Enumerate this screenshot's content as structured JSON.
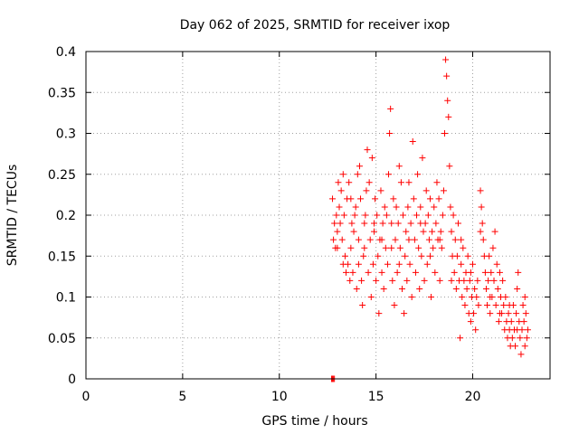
{
  "chart_data": {
    "type": "scatter",
    "title": "Day 062 of 2025, SRMTID for receiver ixop",
    "xlabel": "GPS time / hours",
    "ylabel": "SRMTID / TECUs",
    "xlim": [
      0,
      24
    ],
    "ylim": [
      0,
      0.4
    ],
    "xticks": [
      0,
      5,
      10,
      15,
      20
    ],
    "xtick_labels": [
      "0",
      "5",
      "10",
      "15",
      "20"
    ],
    "yticks": [
      0,
      0.05,
      0.1,
      0.15,
      0.2,
      0.25,
      0.3,
      0.35,
      0.4
    ],
    "ytick_labels": [
      "0",
      "0.05",
      "0.1",
      "0.15",
      "0.2",
      "0.25",
      "0.3",
      "0.35",
      "0.4"
    ],
    "grid": true,
    "marker": "plus",
    "color": "#ff0000",
    "series": [
      {
        "name": "SRMTID",
        "points": [
          [
            12.7,
            0.0
          ],
          [
            12.75,
            0.0
          ],
          [
            12.8,
            0.0
          ],
          [
            12.85,
            0.0
          ],
          [
            12.75,
            0.22
          ],
          [
            12.8,
            0.17
          ],
          [
            12.85,
            0.19
          ],
          [
            12.9,
            0.16
          ],
          [
            12.95,
            0.2
          ],
          [
            13.0,
            0.18
          ],
          [
            13.05,
            0.24
          ],
          [
            13.1,
            0.21
          ],
          [
            13.15,
            0.19
          ],
          [
            13.2,
            0.23
          ],
          [
            13.25,
            0.17
          ],
          [
            13.3,
            0.25
          ],
          [
            13.35,
            0.2
          ],
          [
            13.4,
            0.15
          ],
          [
            13.45,
            0.13
          ],
          [
            13.5,
            0.22
          ],
          [
            13.55,
            0.14
          ],
          [
            13.6,
            0.24
          ],
          [
            13.65,
            0.12
          ],
          [
            13.7,
            0.16
          ],
          [
            13.75,
            0.19
          ],
          [
            13.8,
            0.13
          ],
          [
            13.85,
            0.18
          ],
          [
            13.9,
            0.2
          ],
          [
            13.95,
            0.21
          ],
          [
            14.0,
            0.11
          ],
          [
            14.05,
            0.25
          ],
          [
            14.1,
            0.17
          ],
          [
            14.15,
            0.26
          ],
          [
            14.2,
            0.22
          ],
          [
            14.25,
            0.12
          ],
          [
            14.3,
            0.09
          ],
          [
            14.35,
            0.15
          ],
          [
            14.4,
            0.19
          ],
          [
            14.45,
            0.2
          ],
          [
            14.5,
            0.23
          ],
          [
            14.55,
            0.28
          ],
          [
            14.6,
            0.13
          ],
          [
            14.65,
            0.24
          ],
          [
            14.7,
            0.17
          ],
          [
            14.75,
            0.1
          ],
          [
            14.8,
            0.27
          ],
          [
            14.85,
            0.14
          ],
          [
            14.9,
            0.18
          ],
          [
            14.95,
            0.22
          ],
          [
            15.0,
            0.12
          ],
          [
            15.05,
            0.2
          ],
          [
            15.1,
            0.15
          ],
          [
            15.15,
            0.08
          ],
          [
            15.2,
            0.17
          ],
          [
            15.25,
            0.23
          ],
          [
            15.3,
            0.13
          ],
          [
            15.35,
            0.19
          ],
          [
            15.4,
            0.11
          ],
          [
            15.45,
            0.21
          ],
          [
            15.5,
            0.16
          ],
          [
            15.55,
            0.2
          ],
          [
            15.6,
            0.14
          ],
          [
            15.65,
            0.25
          ],
          [
            15.7,
            0.3
          ],
          [
            15.75,
            0.33
          ],
          [
            15.8,
            0.19
          ],
          [
            15.85,
            0.12
          ],
          [
            15.9,
            0.22
          ],
          [
            15.95,
            0.09
          ],
          [
            16.0,
            0.17
          ],
          [
            16.05,
            0.21
          ],
          [
            16.1,
            0.13
          ],
          [
            16.15,
            0.19
          ],
          [
            16.2,
            0.26
          ],
          [
            16.25,
            0.16
          ],
          [
            16.3,
            0.24
          ],
          [
            16.35,
            0.11
          ],
          [
            16.4,
            0.2
          ],
          [
            16.45,
            0.08
          ],
          [
            16.5,
            0.15
          ],
          [
            16.55,
            0.18
          ],
          [
            16.6,
            0.12
          ],
          [
            16.65,
            0.21
          ],
          [
            16.7,
            0.24
          ],
          [
            16.75,
            0.14
          ],
          [
            16.8,
            0.19
          ],
          [
            16.85,
            0.1
          ],
          [
            16.9,
            0.29
          ],
          [
            16.95,
            0.22
          ],
          [
            17.0,
            0.17
          ],
          [
            17.05,
            0.13
          ],
          [
            17.1,
            0.2
          ],
          [
            17.15,
            0.25
          ],
          [
            17.2,
            0.16
          ],
          [
            17.25,
            0.11
          ],
          [
            17.3,
            0.21
          ],
          [
            17.35,
            0.15
          ],
          [
            17.4,
            0.27
          ],
          [
            17.45,
            0.18
          ],
          [
            17.5,
            0.12
          ],
          [
            17.55,
            0.19
          ],
          [
            17.6,
            0.23
          ],
          [
            17.65,
            0.14
          ],
          [
            17.7,
            0.2
          ],
          [
            17.75,
            0.17
          ],
          [
            17.8,
            0.22
          ],
          [
            17.85,
            0.1
          ],
          [
            17.9,
            0.18
          ],
          [
            17.95,
            0.16
          ],
          [
            18.0,
            0.21
          ],
          [
            18.05,
            0.13
          ],
          [
            18.1,
            0.19
          ],
          [
            18.15,
            0.24
          ],
          [
            18.2,
            0.17
          ],
          [
            18.25,
            0.22
          ],
          [
            18.3,
            0.12
          ],
          [
            18.35,
            0.18
          ],
          [
            18.4,
            0.16
          ],
          [
            18.45,
            0.2
          ],
          [
            18.5,
            0.23
          ],
          [
            18.6,
            0.39
          ],
          [
            18.65,
            0.37
          ],
          [
            18.7,
            0.34
          ],
          [
            18.75,
            0.32
          ],
          [
            18.55,
            0.3
          ],
          [
            18.8,
            0.26
          ],
          [
            18.85,
            0.21
          ],
          [
            18.9,
            0.18
          ],
          [
            18.95,
            0.15
          ],
          [
            19.0,
            0.2
          ],
          [
            19.05,
            0.13
          ],
          [
            19.1,
            0.17
          ],
          [
            19.15,
            0.11
          ],
          [
            19.2,
            0.15
          ],
          [
            19.25,
            0.19
          ],
          [
            19.3,
            0.12
          ],
          [
            19.35,
            0.05
          ],
          [
            19.4,
            0.14
          ],
          [
            19.45,
            0.1
          ],
          [
            19.5,
            0.16
          ],
          [
            19.55,
            0.12
          ],
          [
            19.6,
            0.09
          ],
          [
            19.65,
            0.13
          ],
          [
            19.7,
            0.11
          ],
          [
            19.75,
            0.15
          ],
          [
            19.8,
            0.08
          ],
          [
            19.85,
            0.12
          ],
          [
            19.9,
            0.07
          ],
          [
            19.95,
            0.1
          ],
          [
            20.0,
            0.14
          ],
          [
            20.05,
            0.08
          ],
          [
            20.1,
            0.11
          ],
          [
            20.15,
            0.06
          ],
          [
            20.2,
            0.1
          ],
          [
            20.25,
            0.12
          ],
          [
            20.3,
            0.09
          ],
          [
            20.4,
            0.23
          ],
          [
            20.45,
            0.21
          ],
          [
            20.5,
            0.19
          ],
          [
            20.55,
            0.17
          ],
          [
            20.6,
            0.15
          ],
          [
            20.65,
            0.13
          ],
          [
            20.7,
            0.11
          ],
          [
            20.75,
            0.09
          ],
          [
            20.8,
            0.12
          ],
          [
            20.85,
            0.15
          ],
          [
            20.9,
            0.08
          ],
          [
            20.95,
            0.13
          ],
          [
            21.0,
            0.1
          ],
          [
            21.05,
            0.16
          ],
          [
            21.1,
            0.12
          ],
          [
            21.15,
            0.18
          ],
          [
            21.2,
            0.09
          ],
          [
            21.25,
            0.14
          ],
          [
            21.3,
            0.11
          ],
          [
            21.35,
            0.07
          ],
          [
            21.4,
            0.13
          ],
          [
            21.45,
            0.1
          ],
          [
            21.5,
            0.08
          ],
          [
            21.55,
            0.12
          ],
          [
            21.6,
            0.09
          ],
          [
            21.65,
            0.06
          ],
          [
            21.7,
            0.1
          ],
          [
            21.75,
            0.07
          ],
          [
            21.8,
            0.05
          ],
          [
            21.85,
            0.08
          ],
          [
            21.9,
            0.06
          ],
          [
            21.95,
            0.04
          ],
          [
            22.0,
            0.07
          ],
          [
            22.05,
            0.05
          ],
          [
            22.1,
            0.09
          ],
          [
            22.15,
            0.06
          ],
          [
            22.2,
            0.04
          ],
          [
            22.25,
            0.08
          ],
          [
            22.3,
            0.11
          ],
          [
            22.35,
            0.13
          ],
          [
            22.4,
            0.07
          ],
          [
            22.45,
            0.05
          ],
          [
            22.5,
            0.03
          ],
          [
            22.55,
            0.06
          ],
          [
            22.6,
            0.09
          ],
          [
            22.65,
            0.07
          ],
          [
            22.7,
            0.04
          ],
          [
            22.75,
            0.08
          ],
          [
            22.8,
            0.05
          ],
          [
            22.85,
            0.06
          ],
          [
            13.0,
            0.16
          ],
          [
            13.3,
            0.14
          ],
          [
            13.7,
            0.22
          ],
          [
            14.1,
            0.14
          ],
          [
            14.4,
            0.16
          ],
          [
            14.9,
            0.19
          ],
          [
            15.3,
            0.17
          ],
          [
            15.8,
            0.16
          ],
          [
            16.2,
            0.14
          ],
          [
            16.7,
            0.17
          ],
          [
            17.3,
            0.19
          ],
          [
            17.8,
            0.15
          ],
          [
            18.3,
            0.17
          ],
          [
            18.9,
            0.12
          ],
          [
            19.4,
            0.17
          ],
          [
            19.9,
            0.13
          ],
          [
            20.4,
            0.18
          ],
          [
            20.9,
            0.1
          ],
          [
            21.4,
            0.08
          ],
          [
            21.9,
            0.09
          ],
          [
            22.3,
            0.06
          ],
          [
            22.7,
            0.1
          ]
        ]
      }
    ]
  }
}
